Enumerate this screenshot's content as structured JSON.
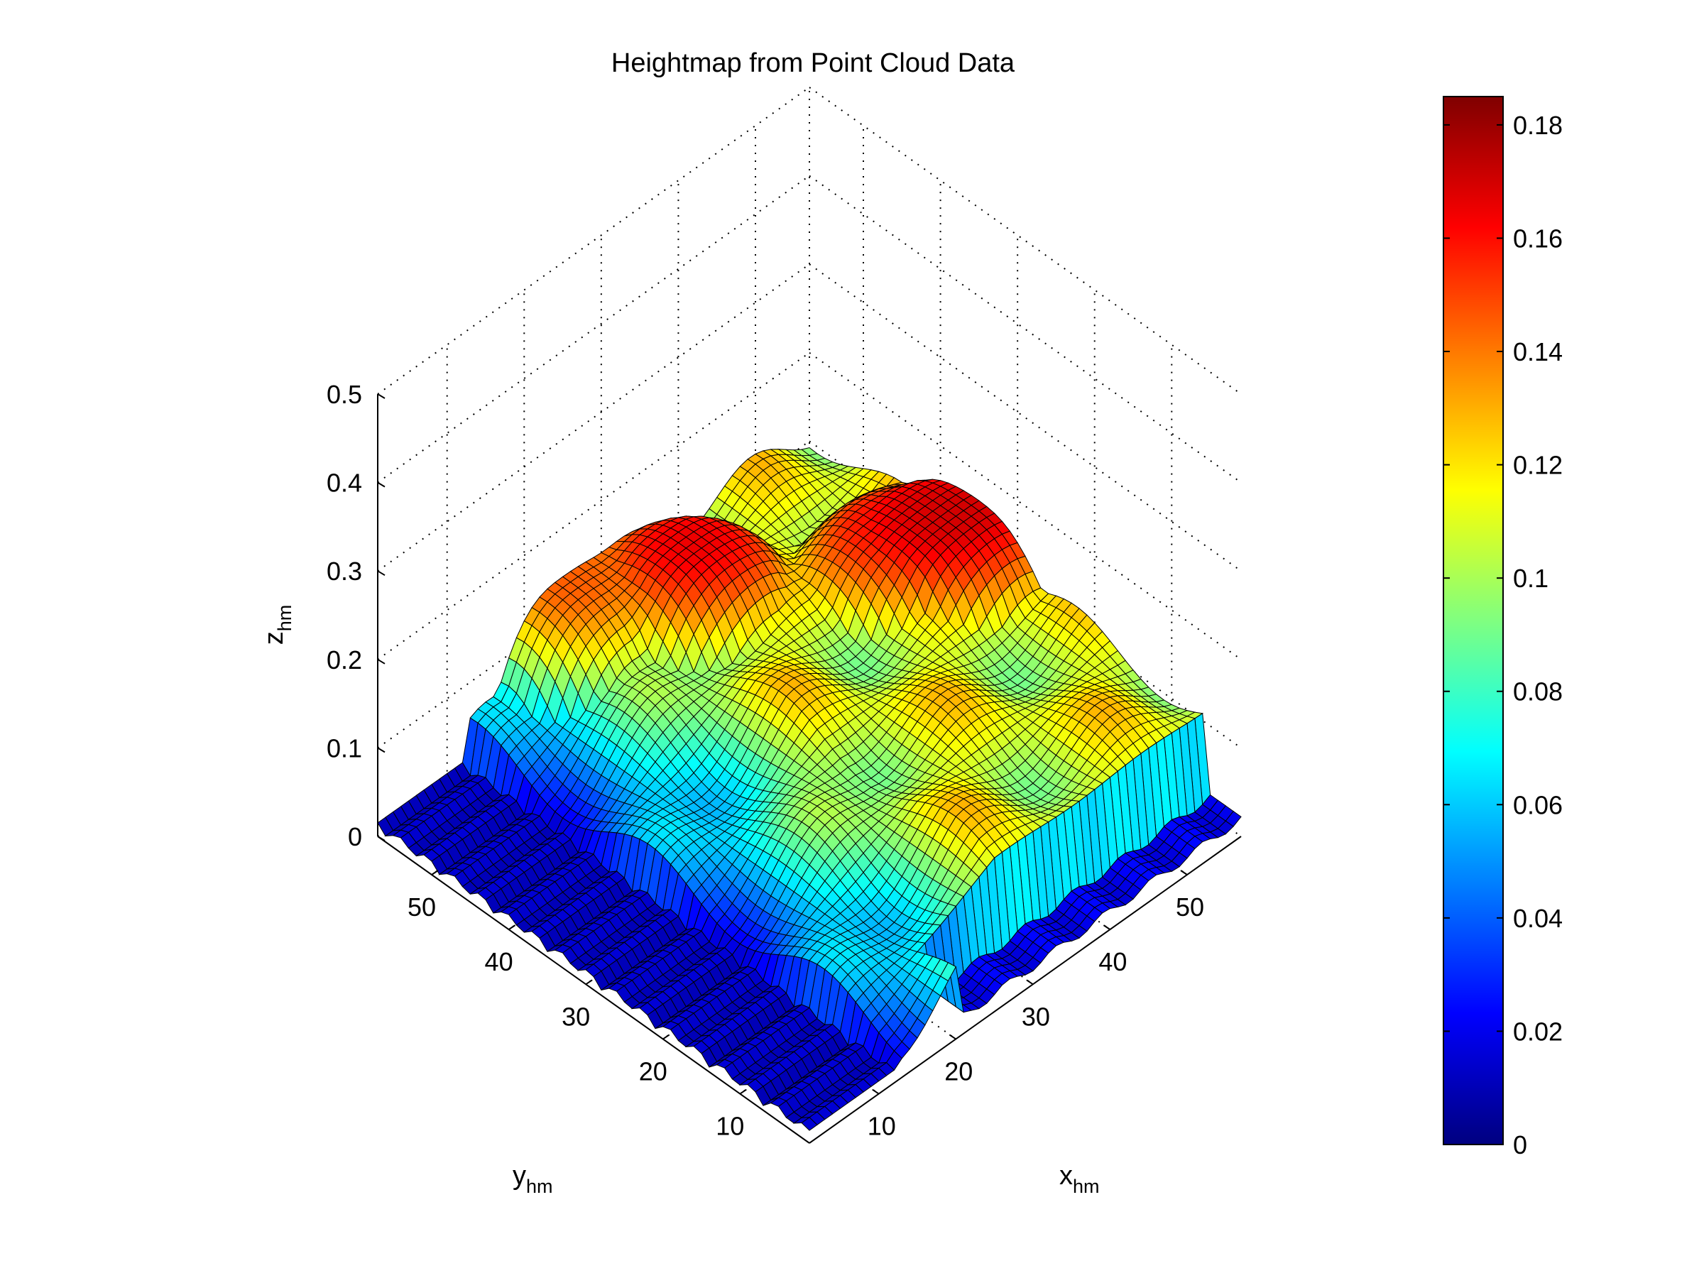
{
  "chart_data": {
    "type": "surface",
    "title": "Heightmap from Point Cloud Data",
    "xlabel": {
      "base": "x",
      "sub": "hm"
    },
    "ylabel": {
      "base": "y",
      "sub": "hm"
    },
    "zlabel": {
      "base": "z",
      "sub": "hm"
    },
    "xlim": [
      1,
      57
    ],
    "ylim": [
      1,
      57
    ],
    "zlim": [
      0,
      0.5
    ],
    "x_ticks": [
      10,
      20,
      30,
      40,
      50
    ],
    "y_ticks": [
      10,
      20,
      30,
      40,
      50
    ],
    "z_ticks": [
      0,
      0.1,
      0.2,
      0.3,
      0.4,
      0.5
    ],
    "z_tick_labels": [
      "0",
      "0.1",
      "0.2",
      "0.3",
      "0.4",
      "0.5"
    ],
    "colormap": "jet",
    "colorbar": {
      "range": [
        0,
        0.185
      ],
      "ticks": [
        0,
        0.02,
        0.04,
        0.06,
        0.08,
        0.1,
        0.12,
        0.14,
        0.16,
        0.18
      ],
      "tick_labels": [
        "0",
        "0.02",
        "0.04",
        "0.06",
        "0.08",
        "0.1",
        "0.12",
        "0.14",
        "0.16",
        "0.18"
      ],
      "placement": "right"
    },
    "grid": true,
    "view": "isometric, azimuth -135",
    "height_features": {
      "floor_level": 0.005,
      "low_strip_max_x": 12,
      "plateau_peaks": [
        {
          "x": 35,
          "y": 50,
          "z": 0.165
        },
        {
          "x": 50,
          "y": 40,
          "z": 0.16
        },
        {
          "x": 55,
          "y": 35,
          "z": 0.17
        },
        {
          "x": 25,
          "y": 56,
          "z": 0.145
        }
      ],
      "mid_region_level": 0.11
    }
  }
}
